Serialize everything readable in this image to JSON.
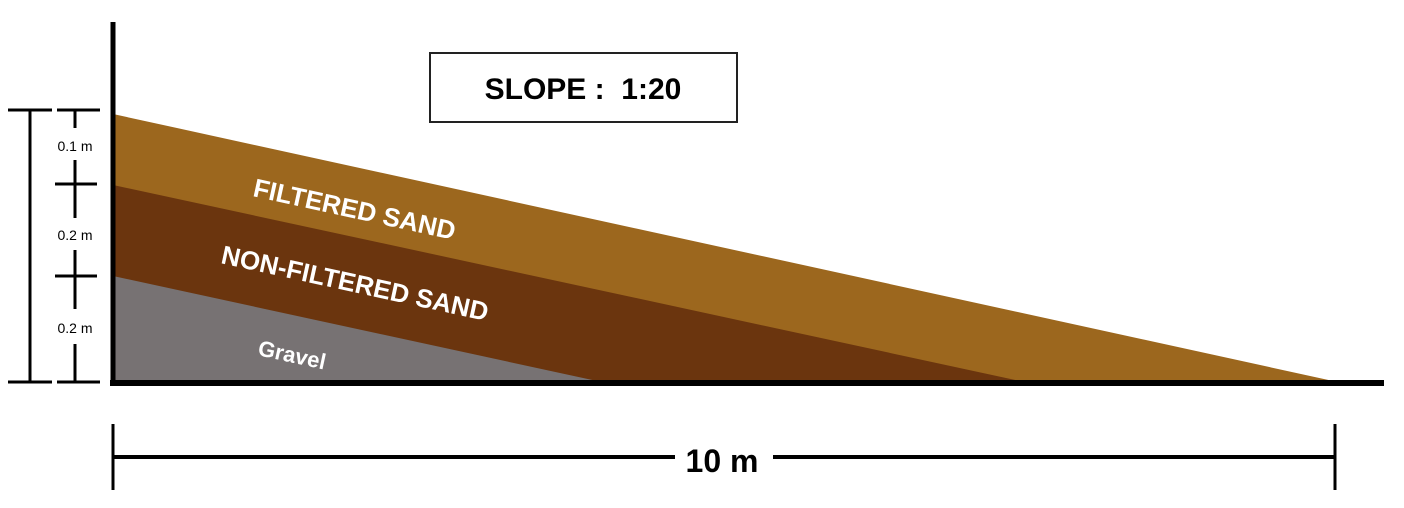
{
  "title_box": {
    "text": "SLOPE :  1:20"
  },
  "layers": [
    {
      "name": "FILTERED SAND",
      "thickness_label": "0.1 m",
      "color": "#9C671E"
    },
    {
      "name": "NON-FILTERED SAND",
      "thickness_label": "0.2 m",
      "color": "#6B350E"
    },
    {
      "name": "Gravel",
      "thickness_label": "0.2 m",
      "color": "#777273"
    }
  ],
  "length_label": "10 m",
  "colors": {
    "line": "#000000",
    "label_text": "#ffffff",
    "box_border": "#222222"
  }
}
